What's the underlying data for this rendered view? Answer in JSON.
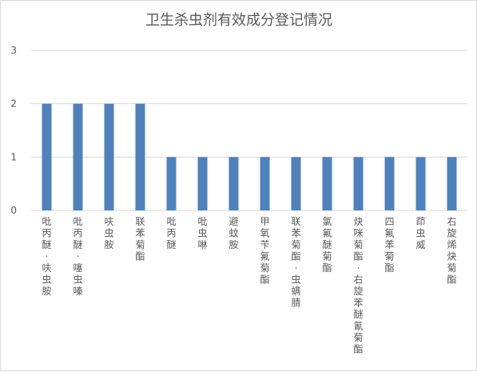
{
  "chart_data": {
    "type": "bar",
    "title": "卫生杀虫剂有效成分登记情况",
    "categories": [
      "吡丙醚·呋虫胺",
      "吡丙醚·噻虫嗪",
      "呋虫胺",
      "联苯菊酯",
      "吡丙醚",
      "吡虫啉",
      "避蚊胺",
      "甲氧苄氟菊酯",
      "联苯菊酯·虫螨腈",
      "氯氟醚菊酯",
      "炔咪菊酯·右旋苯醚氰菊酯",
      "四氟苯菊酯",
      "茚虫威",
      "右旋烯炔菊酯"
    ],
    "values": [
      2,
      2,
      2,
      2,
      1,
      1,
      1,
      1,
      1,
      1,
      1,
      1,
      1,
      1
    ],
    "ylim": [
      0,
      3
    ],
    "yticks": [
      0,
      1,
      2,
      3
    ],
    "xlabel": "",
    "ylabel": "",
    "grid": true,
    "legend": "none",
    "colors": {
      "bar": "#4f81bd",
      "grid": "#d9d9d9",
      "text": "#595959"
    }
  }
}
